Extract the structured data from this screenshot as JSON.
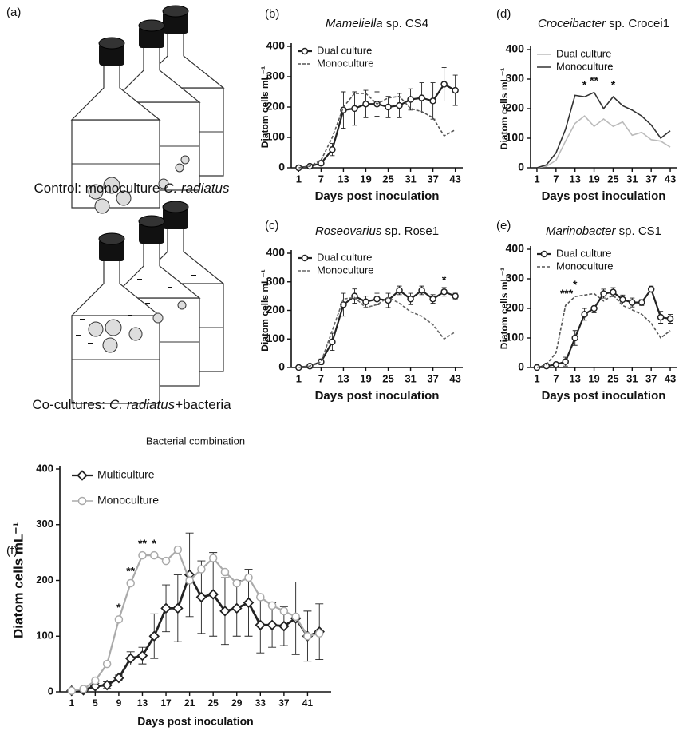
{
  "panel_a": {
    "label": "(a)",
    "control_caption": [
      "Control: monoculture",
      "C. radiatus"
    ],
    "coculture_caption": [
      "Co-cultures:",
      "C. radiatus",
      "+bacteria"
    ]
  },
  "chart_data": [
    {
      "type": "line",
      "panel_label": "(b)",
      "title": "Mameliella sp. CS4",
      "xlabel": "Days post inoculation",
      "ylabel": "Diatom cells mL⁻¹",
      "x": [
        1,
        4,
        7,
        10,
        13,
        16,
        19,
        22,
        25,
        28,
        31,
        34,
        37,
        40,
        43
      ],
      "series": [
        {
          "name": "Dual culture",
          "color": "#222222",
          "marker": "circle",
          "line_style": "solid",
          "values": [
            0,
            5,
            15,
            60,
            190,
            195,
            210,
            210,
            200,
            205,
            225,
            230,
            220,
            275,
            255
          ],
          "errors": [
            2,
            3,
            8,
            20,
            60,
            55,
            45,
            40,
            35,
            40,
            35,
            50,
            60,
            55,
            50
          ]
        },
        {
          "name": "Monoculture",
          "color": "#555555",
          "marker": "none",
          "line_style": "dashed",
          "values": [
            0,
            5,
            25,
            100,
            200,
            245,
            245,
            210,
            230,
            235,
            195,
            185,
            165,
            105,
            125
          ]
        }
      ],
      "xlim": [
        -1,
        45
      ],
      "xticks": [
        1,
        7,
        13,
        19,
        25,
        31,
        37,
        43
      ],
      "ylim": [
        0,
        400
      ],
      "yticks": [
        0,
        100,
        200,
        300,
        400
      ],
      "legend": "upper left",
      "annotations": []
    },
    {
      "type": "line",
      "panel_label": "(c)",
      "title": "Roseovarius sp. Rose1",
      "xlabel": "Days post inoculation",
      "ylabel": "Diatom cells mL⁻¹",
      "x": [
        1,
        4,
        7,
        10,
        13,
        16,
        19,
        22,
        25,
        28,
        31,
        34,
        37,
        40,
        43
      ],
      "series": [
        {
          "name": "Dual culture",
          "color": "#222222",
          "marker": "circle",
          "line_style": "solid",
          "values": [
            0,
            5,
            20,
            90,
            220,
            250,
            230,
            240,
            235,
            270,
            240,
            270,
            240,
            265,
            250
          ],
          "errors": [
            2,
            3,
            10,
            30,
            40,
            25,
            20,
            20,
            25,
            15,
            20,
            15,
            15,
            15,
            10
          ]
        },
        {
          "name": "Monoculture",
          "color": "#666666",
          "marker": "none",
          "line_style": "dashed",
          "values": [
            0,
            5,
            20,
            130,
            240,
            245,
            210,
            220,
            245,
            225,
            195,
            180,
            150,
            100,
            125
          ]
        }
      ],
      "xlim": [
        -1,
        45
      ],
      "xticks": [
        1,
        7,
        13,
        19,
        25,
        31,
        37,
        43
      ],
      "ylim": [
        0,
        400
      ],
      "yticks": [
        0,
        100,
        200,
        300,
        400
      ],
      "legend": "upper left",
      "annotations": [
        {
          "x": 40,
          "text": "*"
        }
      ]
    },
    {
      "type": "line",
      "panel_label": "(d)",
      "title": "Croceibacter sp. Crocei1",
      "xlabel": "Days post inoculation",
      "ylabel": "Diatom cells mL⁻¹",
      "x": [
        1,
        4,
        7,
        10,
        13,
        16,
        19,
        22,
        25,
        28,
        31,
        34,
        37,
        40,
        43
      ],
      "series": [
        {
          "name": "Dual culture",
          "color": "#bbbbbb",
          "marker": "none",
          "line_style": "solid",
          "values": [
            0,
            5,
            25,
            90,
            150,
            175,
            140,
            165,
            140,
            155,
            110,
            120,
            95,
            90,
            70
          ]
        },
        {
          "name": "Monoculture",
          "color": "#333333",
          "marker": "none",
          "line_style": "solid",
          "values": [
            0,
            10,
            50,
            130,
            245,
            240,
            255,
            200,
            240,
            210,
            195,
            175,
            145,
            100,
            125
          ]
        }
      ],
      "xlim": [
        -1,
        45
      ],
      "xticks": [
        1,
        7,
        13,
        19,
        25,
        31,
        37,
        43
      ],
      "ylim": [
        0,
        400
      ],
      "yticks": [
        0,
        100,
        200,
        300,
        400
      ],
      "legend": "upper left",
      "annotations": [
        {
          "x": 16,
          "text": "*"
        },
        {
          "x": 19,
          "text": "**"
        },
        {
          "x": 25,
          "text": "*"
        }
      ]
    },
    {
      "type": "line",
      "panel_label": "(e)",
      "title": "Marinobacter sp. CS1",
      "xlabel": "Days post inoculation",
      "ylabel": "Diatom cells mL⁻¹",
      "x": [
        1,
        4,
        7,
        10,
        13,
        16,
        19,
        22,
        25,
        28,
        31,
        34,
        37,
        40,
        43
      ],
      "series": [
        {
          "name": "Dual culture",
          "color": "#222222",
          "marker": "circle",
          "line_style": "solid",
          "values": [
            0,
            5,
            10,
            20,
            100,
            180,
            200,
            250,
            255,
            230,
            220,
            220,
            265,
            170,
            165
          ],
          "errors": [
            2,
            3,
            5,
            15,
            25,
            20,
            15,
            15,
            15,
            15,
            15,
            10,
            10,
            20,
            15
          ]
        },
        {
          "name": "Monoculture",
          "color": "#555555",
          "marker": "none",
          "line_style": "dashed",
          "values": [
            0,
            10,
            50,
            210,
            240,
            245,
            250,
            225,
            245,
            210,
            195,
            180,
            150,
            100,
            125
          ]
        }
      ],
      "xlim": [
        -1,
        45
      ],
      "xticks": [
        1,
        7,
        13,
        19,
        25,
        31,
        37,
        43
      ],
      "ylim": [
        0,
        400
      ],
      "yticks": [
        0,
        100,
        200,
        300,
        400
      ],
      "legend": "upper left",
      "annotations": [
        {
          "x": 9,
          "text": "*"
        },
        {
          "x": 11,
          "text": "**"
        },
        {
          "x": 13,
          "text": "*"
        }
      ]
    },
    {
      "type": "line",
      "panel_label": "(f)",
      "title": "Bacterial combination",
      "xlabel": "Days post inoculation",
      "ylabel": "Diatom cells mL⁻¹",
      "x": [
        1,
        3,
        5,
        7,
        9,
        11,
        13,
        15,
        17,
        19,
        21,
        23,
        25,
        27,
        29,
        31,
        33,
        35,
        37,
        39,
        41,
        43
      ],
      "series": [
        {
          "name": "Multiculture",
          "color": "#222222",
          "marker": "diamond",
          "line_style": "solid",
          "values": [
            2,
            3,
            10,
            12,
            25,
            60,
            65,
            100,
            150,
            150,
            210,
            170,
            175,
            145,
            150,
            160,
            120,
            120,
            118,
            132,
            100,
            108
          ],
          "errors": [
            2,
            2,
            5,
            6,
            5,
            12,
            15,
            40,
            42,
            60,
            75,
            65,
            75,
            60,
            50,
            60,
            50,
            40,
            35,
            65,
            45,
            50
          ]
        },
        {
          "name": "Monoculture",
          "color": "#aaaaaa",
          "marker": "circle",
          "line_style": "solid",
          "values": [
            2,
            5,
            20,
            50,
            130,
            195,
            245,
            245,
            235,
            255,
            200,
            220,
            240,
            215,
            195,
            205,
            170,
            155,
            145,
            135,
            100,
            105
          ]
        }
      ],
      "xlim": [
        -1,
        45
      ],
      "xticks": [
        1,
        5,
        9,
        13,
        17,
        21,
        25,
        29,
        33,
        37,
        41
      ],
      "ylim": [
        0,
        400
      ],
      "yticks": [
        0,
        100,
        200,
        300,
        400
      ],
      "legend": "upper left",
      "annotations": [
        {
          "x": 9,
          "text": "*"
        },
        {
          "x": 11,
          "text": "**"
        },
        {
          "x": 13,
          "text": "**"
        },
        {
          "x": 15,
          "text": "*"
        }
      ]
    }
  ]
}
